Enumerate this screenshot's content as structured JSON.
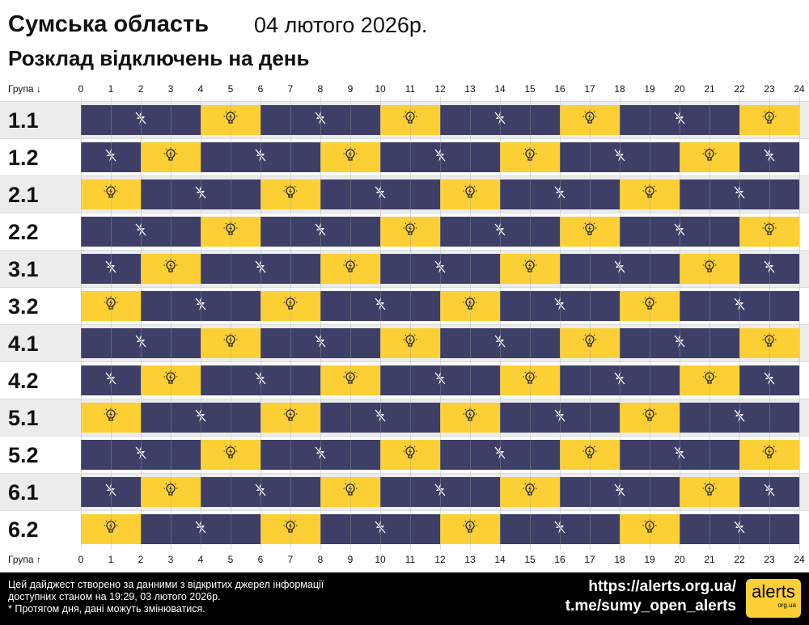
{
  "header": {
    "region": "Сумська область",
    "date": "04 лютого 2026р.",
    "subtitle": "Розклад відключень на день"
  },
  "axis": {
    "top_label": "Група ↓",
    "bottom_label": "Група ↑",
    "hours": [
      "0",
      "1",
      "2",
      "3",
      "4",
      "5",
      "6",
      "7",
      "8",
      "9",
      "10",
      "11",
      "12",
      "13",
      "14",
      "15",
      "16",
      "17",
      "18",
      "19",
      "20",
      "21",
      "22",
      "23",
      "24"
    ]
  },
  "colors": {
    "power_off": "#3d3f66",
    "power_on": "#fcd035"
  },
  "groups": [
    {
      "name": "1.1",
      "segments": [
        [
          "off",
          0,
          4
        ],
        [
          "on",
          4,
          6
        ],
        [
          "off",
          6,
          10
        ],
        [
          "on",
          10,
          12
        ],
        [
          "off",
          12,
          16
        ],
        [
          "on",
          16,
          18
        ],
        [
          "off",
          18,
          22
        ],
        [
          "on",
          22,
          24
        ]
      ]
    },
    {
      "name": "1.2",
      "segments": [
        [
          "off",
          0,
          2
        ],
        [
          "on",
          2,
          4
        ],
        [
          "off",
          4,
          8
        ],
        [
          "on",
          8,
          10
        ],
        [
          "off",
          10,
          14
        ],
        [
          "on",
          14,
          16
        ],
        [
          "off",
          16,
          20
        ],
        [
          "on",
          20,
          22
        ],
        [
          "off",
          22,
          24
        ]
      ]
    },
    {
      "name": "2.1",
      "segments": [
        [
          "on",
          0,
          2
        ],
        [
          "off",
          2,
          6
        ],
        [
          "on",
          6,
          8
        ],
        [
          "off",
          8,
          12
        ],
        [
          "on",
          12,
          14
        ],
        [
          "off",
          14,
          18
        ],
        [
          "on",
          18,
          20
        ],
        [
          "off",
          20,
          24
        ]
      ]
    },
    {
      "name": "2.2",
      "segments": [
        [
          "off",
          0,
          4
        ],
        [
          "on",
          4,
          6
        ],
        [
          "off",
          6,
          10
        ],
        [
          "on",
          10,
          12
        ],
        [
          "off",
          12,
          16
        ],
        [
          "on",
          16,
          18
        ],
        [
          "off",
          18,
          22
        ],
        [
          "on",
          22,
          24
        ]
      ]
    },
    {
      "name": "3.1",
      "segments": [
        [
          "off",
          0,
          2
        ],
        [
          "on",
          2,
          4
        ],
        [
          "off",
          4,
          8
        ],
        [
          "on",
          8,
          10
        ],
        [
          "off",
          10,
          14
        ],
        [
          "on",
          14,
          16
        ],
        [
          "off",
          16,
          20
        ],
        [
          "on",
          20,
          22
        ],
        [
          "off",
          22,
          24
        ]
      ]
    },
    {
      "name": "3.2",
      "segments": [
        [
          "on",
          0,
          2
        ],
        [
          "off",
          2,
          6
        ],
        [
          "on",
          6,
          8
        ],
        [
          "off",
          8,
          12
        ],
        [
          "on",
          12,
          14
        ],
        [
          "off",
          14,
          18
        ],
        [
          "on",
          18,
          20
        ],
        [
          "off",
          20,
          24
        ]
      ]
    },
    {
      "name": "4.1",
      "segments": [
        [
          "off",
          0,
          4
        ],
        [
          "on",
          4,
          6
        ],
        [
          "off",
          6,
          10
        ],
        [
          "on",
          10,
          12
        ],
        [
          "off",
          12,
          16
        ],
        [
          "on",
          16,
          18
        ],
        [
          "off",
          18,
          22
        ],
        [
          "on",
          22,
          24
        ]
      ]
    },
    {
      "name": "4.2",
      "segments": [
        [
          "off",
          0,
          2
        ],
        [
          "on",
          2,
          4
        ],
        [
          "off",
          4,
          8
        ],
        [
          "on",
          8,
          10
        ],
        [
          "off",
          10,
          14
        ],
        [
          "on",
          14,
          16
        ],
        [
          "off",
          16,
          20
        ],
        [
          "on",
          20,
          22
        ],
        [
          "off",
          22,
          24
        ]
      ]
    },
    {
      "name": "5.1",
      "segments": [
        [
          "on",
          0,
          2
        ],
        [
          "off",
          2,
          6
        ],
        [
          "on",
          6,
          8
        ],
        [
          "off",
          8,
          12
        ],
        [
          "on",
          12,
          14
        ],
        [
          "off",
          14,
          18
        ],
        [
          "on",
          18,
          20
        ],
        [
          "off",
          20,
          24
        ]
      ]
    },
    {
      "name": "5.2",
      "segments": [
        [
          "off",
          0,
          4
        ],
        [
          "on",
          4,
          6
        ],
        [
          "off",
          6,
          10
        ],
        [
          "on",
          10,
          12
        ],
        [
          "off",
          12,
          16
        ],
        [
          "on",
          16,
          18
        ],
        [
          "off",
          18,
          22
        ],
        [
          "on",
          22,
          24
        ]
      ]
    },
    {
      "name": "6.1",
      "segments": [
        [
          "off",
          0,
          2
        ],
        [
          "on",
          2,
          4
        ],
        [
          "off",
          4,
          8
        ],
        [
          "on",
          8,
          10
        ],
        [
          "off",
          10,
          14
        ],
        [
          "on",
          14,
          16
        ],
        [
          "off",
          16,
          20
        ],
        [
          "on",
          20,
          22
        ],
        [
          "off",
          22,
          24
        ]
      ]
    },
    {
      "name": "6.2",
      "segments": [
        [
          "on",
          0,
          2
        ],
        [
          "off",
          2,
          6
        ],
        [
          "on",
          6,
          8
        ],
        [
          "off",
          8,
          12
        ],
        [
          "on",
          12,
          14
        ],
        [
          "off",
          14,
          18
        ],
        [
          "on",
          18,
          20
        ],
        [
          "off",
          20,
          24
        ]
      ]
    }
  ],
  "footer": {
    "note1": "Цей дайджест створено за данними з відкритих джерел інформації",
    "note2": "доступних станом на 19:29, 03 лютого 2026р.",
    "note3": "* Протягом дня, дані можуть змінюватися.",
    "link1": "https://alerts.org.ua/",
    "link2": "t.me/sumy_open_alerts",
    "logo_text": "alerts",
    "logo_sub": "org.ua"
  }
}
